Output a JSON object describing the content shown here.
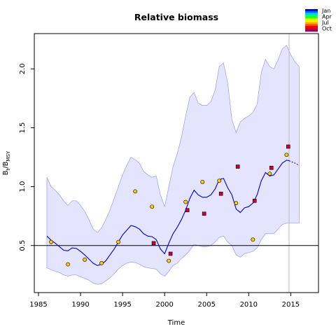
{
  "chart_data": {
    "type": "line",
    "title": "Relative biomass",
    "xlabel": "Time",
    "ylabel": {
      "main": "B",
      "sub1": "t",
      "slash": "/B",
      "sub2": "MSY"
    },
    "xlim": [
      1984.5,
      2018.3
    ],
    "ylim": [
      0.1,
      2.3
    ],
    "x_ticks": [
      "1985",
      "1990",
      "1995",
      "2000",
      "2005",
      "2010",
      "2015"
    ],
    "y_ticks": [
      "0.5",
      "1.0",
      "1.5",
      "2.0"
    ],
    "reference_line": {
      "y": 0.5
    },
    "vertical_marker": {
      "x": 2014.8
    },
    "median_color": "#0000dd",
    "band_color": "#e4e4ff",
    "band_edge_color": "#9a9af0",
    "legend": {
      "position": "top-right",
      "labels": [
        "Jan",
        "Apr",
        "Jul",
        "Oct"
      ],
      "colors": [
        "#0000cc",
        "#0066ff",
        "#00ccff",
        "#00ff66",
        "#33ff00",
        "#ccff00",
        "#ffee00",
        "#ffaa00",
        "#ff5500",
        "#ff0000",
        "#cc0033",
        "#990066"
      ]
    },
    "series": [
      {
        "role": "median",
        "x": [
          1986.0,
          1986.5,
          1987.0,
          1987.5,
          1988.0,
          1988.5,
          1989.0,
          1989.5,
          1990.0,
          1990.5,
          1991.0,
          1991.5,
          1992.0,
          1992.5,
          1993.0,
          1993.5,
          1994.0,
          1994.5,
          1995.0,
          1995.5,
          1996.0,
          1996.5,
          1997.0,
          1997.5,
          1998.0,
          1998.5,
          1999.0,
          1999.5,
          2000.0,
          2000.5,
          2001.0,
          2001.5,
          2002.0,
          2002.5,
          2003.0,
          2003.5,
          2004.0,
          2004.5,
          2005.0,
          2005.5,
          2006.0,
          2006.5,
          2007.0,
          2007.5,
          2008.0,
          2008.5,
          2009.0,
          2009.5,
          2010.0,
          2010.5,
          2011.0,
          2011.5,
          2012.0,
          2012.5,
          2013.0,
          2013.5,
          2014.0,
          2014.5,
          2014.8
        ],
        "y": [
          0.58,
          0.545,
          0.52,
          0.49,
          0.46,
          0.455,
          0.48,
          0.475,
          0.45,
          0.42,
          0.385,
          0.35,
          0.33,
          0.34,
          0.37,
          0.42,
          0.47,
          0.53,
          0.59,
          0.63,
          0.67,
          0.66,
          0.64,
          0.6,
          0.58,
          0.575,
          0.55,
          0.47,
          0.43,
          0.52,
          0.6,
          0.655,
          0.72,
          0.8,
          0.9,
          0.97,
          0.93,
          0.91,
          0.91,
          0.93,
          0.98,
          1.06,
          1.07,
          0.99,
          0.93,
          0.81,
          0.78,
          0.82,
          0.83,
          0.86,
          0.93,
          1.05,
          1.12,
          1.09,
          1.1,
          1.15,
          1.2,
          1.225,
          1.22
        ]
      },
      {
        "role": "projection",
        "x": [
          2014.8,
          2015.5,
          2016.0
        ],
        "y": [
          1.22,
          1.2,
          1.18
        ]
      },
      {
        "role": "upper_bound",
        "x": [
          1986.0,
          1986.5,
          1987.0,
          1987.5,
          1988.0,
          1988.5,
          1989.0,
          1989.5,
          1990.0,
          1990.5,
          1991.0,
          1991.5,
          1992.0,
          1992.5,
          1993.0,
          1993.5,
          1994.0,
          1994.5,
          1995.0,
          1995.5,
          1996.0,
          1996.5,
          1997.0,
          1997.5,
          1998.0,
          1998.5,
          1999.0,
          1999.5,
          2000.0,
          2000.5,
          2001.0,
          2001.5,
          2002.0,
          2002.5,
          2003.0,
          2003.5,
          2004.0,
          2004.5,
          2005.0,
          2005.5,
          2006.0,
          2006.5,
          2007.0,
          2007.5,
          2008.0,
          2008.5,
          2009.0,
          2009.5,
          2010.0,
          2010.5,
          2011.0,
          2011.5,
          2012.0,
          2012.5,
          2013.0,
          2013.5,
          2014.0,
          2014.5,
          2015.0,
          2015.5,
          2016.0
        ],
        "y": [
          1.08,
          1.0,
          0.97,
          0.93,
          0.88,
          0.84,
          0.88,
          0.88,
          0.84,
          0.79,
          0.72,
          0.64,
          0.61,
          0.65,
          0.72,
          0.8,
          0.9,
          1.0,
          1.1,
          1.18,
          1.25,
          1.23,
          1.2,
          1.13,
          1.1,
          1.08,
          1.09,
          0.93,
          0.83,
          1.0,
          1.17,
          1.28,
          1.42,
          1.6,
          1.76,
          1.8,
          1.71,
          1.69,
          1.69,
          1.72,
          1.82,
          2.02,
          2.05,
          1.88,
          1.57,
          1.46,
          1.55,
          1.58,
          1.6,
          1.63,
          1.7,
          1.97,
          2.08,
          2.02,
          2.0,
          2.08,
          2.17,
          2.2,
          2.12,
          2.06,
          2.02
        ]
      },
      {
        "role": "lower_bound",
        "x": [
          1986.0,
          1986.5,
          1987.0,
          1987.5,
          1988.0,
          1988.5,
          1989.0,
          1989.5,
          1990.0,
          1990.5,
          1991.0,
          1991.5,
          1992.0,
          1992.5,
          1993.0,
          1993.5,
          1994.0,
          1994.5,
          1995.0,
          1995.5,
          1996.0,
          1996.5,
          1997.0,
          1997.5,
          1998.0,
          1998.5,
          1999.0,
          1999.5,
          2000.0,
          2000.5,
          2001.0,
          2001.5,
          2002.0,
          2002.5,
          2003.0,
          2003.5,
          2004.0,
          2004.5,
          2005.0,
          2005.5,
          2006.0,
          2006.5,
          2007.0,
          2007.5,
          2008.0,
          2008.5,
          2009.0,
          2009.5,
          2010.0,
          2010.5,
          2011.0,
          2011.5,
          2012.0,
          2012.5,
          2013.0,
          2013.5,
          2014.0,
          2014.5,
          2015.0,
          2015.5,
          2016.0
        ],
        "y": [
          0.31,
          0.295,
          0.28,
          0.27,
          0.25,
          0.24,
          0.25,
          0.25,
          0.235,
          0.22,
          0.205,
          0.18,
          0.17,
          0.175,
          0.2,
          0.225,
          0.26,
          0.3,
          0.33,
          0.35,
          0.36,
          0.355,
          0.34,
          0.32,
          0.31,
          0.305,
          0.3,
          0.26,
          0.24,
          0.28,
          0.33,
          0.35,
          0.39,
          0.42,
          0.46,
          0.51,
          0.5,
          0.49,
          0.49,
          0.5,
          0.53,
          0.57,
          0.58,
          0.53,
          0.5,
          0.42,
          0.4,
          0.43,
          0.44,
          0.45,
          0.48,
          0.55,
          0.6,
          0.6,
          0.6,
          0.64,
          0.68,
          0.69,
          0.69,
          0.69,
          0.69
        ]
      }
    ],
    "observations": [
      {
        "x": 1986.5,
        "y": 0.53,
        "color": "#ffcc00",
        "marker": "circle"
      },
      {
        "x": 1988.5,
        "y": 0.34,
        "color": "#ffcc00",
        "marker": "circle"
      },
      {
        "x": 1990.5,
        "y": 0.38,
        "color": "#ffcc00",
        "marker": "circle"
      },
      {
        "x": 1992.5,
        "y": 0.35,
        "color": "#ffcc00",
        "marker": "circle"
      },
      {
        "x": 1994.5,
        "y": 0.53,
        "color": "#ffcc00",
        "marker": "circle"
      },
      {
        "x": 1996.5,
        "y": 0.96,
        "color": "#ffcc00",
        "marker": "circle"
      },
      {
        "x": 1998.5,
        "y": 0.83,
        "color": "#ffcc00",
        "marker": "circle"
      },
      {
        "x": 1998.7,
        "y": 0.52,
        "color": "#cc0033",
        "marker": "square"
      },
      {
        "x": 2000.5,
        "y": 0.37,
        "color": "#ffcc00",
        "marker": "circle"
      },
      {
        "x": 2000.7,
        "y": 0.43,
        "color": "#cc0033",
        "marker": "square"
      },
      {
        "x": 2002.5,
        "y": 0.87,
        "color": "#ffcc00",
        "marker": "circle"
      },
      {
        "x": 2002.7,
        "y": 0.8,
        "color": "#cc0033",
        "marker": "square"
      },
      {
        "x": 2004.5,
        "y": 1.04,
        "color": "#ffcc00",
        "marker": "circle"
      },
      {
        "x": 2004.7,
        "y": 0.77,
        "color": "#cc0033",
        "marker": "square"
      },
      {
        "x": 2006.5,
        "y": 1.05,
        "color": "#ffcc00",
        "marker": "circle"
      },
      {
        "x": 2006.7,
        "y": 0.94,
        "color": "#cc0033",
        "marker": "square"
      },
      {
        "x": 2008.5,
        "y": 0.86,
        "color": "#ffcc00",
        "marker": "circle"
      },
      {
        "x": 2008.7,
        "y": 1.17,
        "color": "#cc0033",
        "marker": "square"
      },
      {
        "x": 2010.5,
        "y": 0.55,
        "color": "#ffcc00",
        "marker": "circle"
      },
      {
        "x": 2010.7,
        "y": 0.88,
        "color": "#cc0033",
        "marker": "square"
      },
      {
        "x": 2012.5,
        "y": 1.11,
        "color": "#ffcc00",
        "marker": "circle"
      },
      {
        "x": 2012.7,
        "y": 1.16,
        "color": "#cc0033",
        "marker": "square"
      },
      {
        "x": 2014.5,
        "y": 1.27,
        "color": "#ffcc00",
        "marker": "circle"
      },
      {
        "x": 2014.7,
        "y": 1.34,
        "color": "#cc0033",
        "marker": "square"
      }
    ]
  }
}
